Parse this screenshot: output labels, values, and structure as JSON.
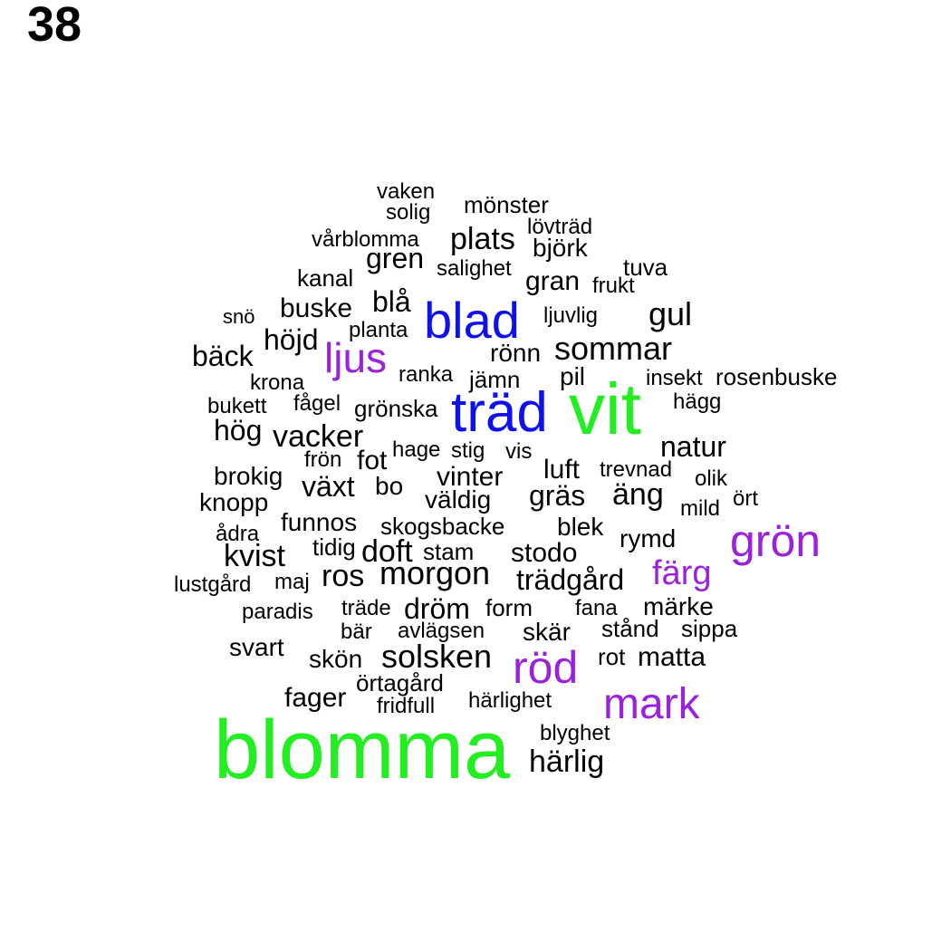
{
  "page_number": "38",
  "palette": {
    "green": "#22ee22",
    "blue": "#1010ee",
    "purple": "#9a22dd",
    "black": "#000000"
  },
  "words": [
    {
      "text": "blomma",
      "color": "green"
    },
    {
      "text": "vit",
      "color": "green"
    },
    {
      "text": "träd",
      "color": "blue"
    },
    {
      "text": "blad",
      "color": "blue"
    },
    {
      "text": "grön",
      "color": "purple"
    },
    {
      "text": "mark",
      "color": "purple"
    },
    {
      "text": "röd",
      "color": "purple"
    },
    {
      "text": "ljus",
      "color": "purple"
    },
    {
      "text": "färg",
      "color": "purple"
    },
    {
      "text": "vaken",
      "color": "black"
    },
    {
      "text": "mönster",
      "color": "black"
    },
    {
      "text": "solig",
      "color": "black"
    },
    {
      "text": "lövträd",
      "color": "black"
    },
    {
      "text": "vårblomma",
      "color": "black"
    },
    {
      "text": "plats",
      "color": "black"
    },
    {
      "text": "björk",
      "color": "black"
    },
    {
      "text": "gren",
      "color": "black"
    },
    {
      "text": "salighet",
      "color": "black"
    },
    {
      "text": "tuva",
      "color": "black"
    },
    {
      "text": "kanal",
      "color": "black"
    },
    {
      "text": "gran",
      "color": "black"
    },
    {
      "text": "frukt",
      "color": "black"
    },
    {
      "text": "blå",
      "color": "black"
    },
    {
      "text": "buske",
      "color": "black"
    },
    {
      "text": "snö",
      "color": "black"
    },
    {
      "text": "ljuvlig",
      "color": "black"
    },
    {
      "text": "gul",
      "color": "black"
    },
    {
      "text": "planta",
      "color": "black"
    },
    {
      "text": "höjd",
      "color": "black"
    },
    {
      "text": "sommar",
      "color": "black"
    },
    {
      "text": "bäck",
      "color": "black"
    },
    {
      "text": "rönn",
      "color": "black"
    },
    {
      "text": "ranka",
      "color": "black"
    },
    {
      "text": "pil",
      "color": "black"
    },
    {
      "text": "jämn",
      "color": "black"
    },
    {
      "text": "insekt",
      "color": "black"
    },
    {
      "text": "rosenbuske",
      "color": "black"
    },
    {
      "text": "krona",
      "color": "black"
    },
    {
      "text": "hägg",
      "color": "black"
    },
    {
      "text": "bukett",
      "color": "black"
    },
    {
      "text": "fågel",
      "color": "black"
    },
    {
      "text": "grönska",
      "color": "black"
    },
    {
      "text": "hög",
      "color": "black"
    },
    {
      "text": "vacker",
      "color": "black"
    },
    {
      "text": "natur",
      "color": "black"
    },
    {
      "text": "hage",
      "color": "black"
    },
    {
      "text": "stig",
      "color": "black"
    },
    {
      "text": "vis",
      "color": "black"
    },
    {
      "text": "frön",
      "color": "black"
    },
    {
      "text": "fot",
      "color": "black"
    },
    {
      "text": "trevnad",
      "color": "black"
    },
    {
      "text": "luft",
      "color": "black"
    },
    {
      "text": "brokig",
      "color": "black"
    },
    {
      "text": "vinter",
      "color": "black"
    },
    {
      "text": "olik",
      "color": "black"
    },
    {
      "text": "växt",
      "color": "black"
    },
    {
      "text": "bo",
      "color": "black"
    },
    {
      "text": "väldig",
      "color": "black"
    },
    {
      "text": "gräs",
      "color": "black"
    },
    {
      "text": "äng",
      "color": "black"
    },
    {
      "text": "knopp",
      "color": "black"
    },
    {
      "text": "ört",
      "color": "black"
    },
    {
      "text": "mild",
      "color": "black"
    },
    {
      "text": "funnos",
      "color": "black"
    },
    {
      "text": "skogsbacke",
      "color": "black"
    },
    {
      "text": "blek",
      "color": "black"
    },
    {
      "text": "ådra",
      "color": "black"
    },
    {
      "text": "rymd",
      "color": "black"
    },
    {
      "text": "tidig",
      "color": "black"
    },
    {
      "text": "kvist",
      "color": "black"
    },
    {
      "text": "doft",
      "color": "black"
    },
    {
      "text": "stam",
      "color": "black"
    },
    {
      "text": "stodo",
      "color": "black"
    },
    {
      "text": "ros",
      "color": "black"
    },
    {
      "text": "morgon",
      "color": "black"
    },
    {
      "text": "trädgård",
      "color": "black"
    },
    {
      "text": "lustgård",
      "color": "black"
    },
    {
      "text": "maj",
      "color": "black"
    },
    {
      "text": "paradis",
      "color": "black"
    },
    {
      "text": "träde",
      "color": "black"
    },
    {
      "text": "dröm",
      "color": "black"
    },
    {
      "text": "form",
      "color": "black"
    },
    {
      "text": "fana",
      "color": "black"
    },
    {
      "text": "märke",
      "color": "black"
    },
    {
      "text": "bär",
      "color": "black"
    },
    {
      "text": "avlägsen",
      "color": "black"
    },
    {
      "text": "skär",
      "color": "black"
    },
    {
      "text": "stånd",
      "color": "black"
    },
    {
      "text": "sippa",
      "color": "black"
    },
    {
      "text": "svart",
      "color": "black"
    },
    {
      "text": "skön",
      "color": "black"
    },
    {
      "text": "solsken",
      "color": "black"
    },
    {
      "text": "rot",
      "color": "black"
    },
    {
      "text": "matta",
      "color": "black"
    },
    {
      "text": "örtagård",
      "color": "black"
    },
    {
      "text": "fager",
      "color": "black"
    },
    {
      "text": "fridfull",
      "color": "black"
    },
    {
      "text": "härlighet",
      "color": "black"
    },
    {
      "text": "blyghet",
      "color": "black"
    },
    {
      "text": "härlig",
      "color": "black"
    }
  ]
}
